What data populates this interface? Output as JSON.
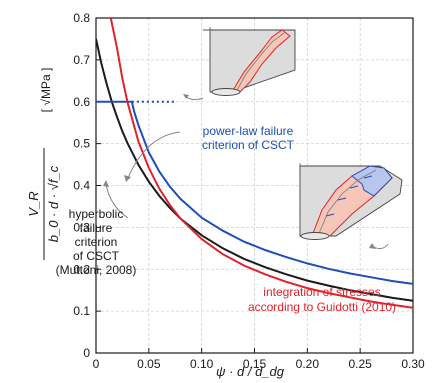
{
  "chart_data": {
    "type": "line",
    "title": "",
    "xlabel": "ψ · d / d_dg",
    "ylabel_num": "V_R",
    "ylabel_den": "b_0 · d · √f_c",
    "ylabel_unit": "[ √MPa ]",
    "xlim": [
      0,
      0.3
    ],
    "ylim": [
      0,
      0.8
    ],
    "x_ticks": [
      "0",
      "0.05",
      "0.10",
      "0.15",
      "0.20",
      "0.25",
      "0.30"
    ],
    "y_ticks": [
      "0",
      "0.1",
      "0.2",
      "0.3",
      "0.4",
      "0.5",
      "0.6",
      "0.7",
      "0.8"
    ],
    "grid": true,
    "series": [
      {
        "color": "#1a1a1a",
        "points": [
          [
            0,
            0.75
          ],
          [
            0.005,
            0.692
          ],
          [
            0.01,
            0.643
          ],
          [
            0.015,
            0.6
          ],
          [
            0.02,
            0.563
          ],
          [
            0.025,
            0.529
          ],
          [
            0.03,
            0.5
          ],
          [
            0.04,
            0.45
          ],
          [
            0.05,
            0.409
          ],
          [
            0.06,
            0.375
          ],
          [
            0.07,
            0.346
          ],
          [
            0.08,
            0.321
          ],
          [
            0.1,
            0.281
          ],
          [
            0.12,
            0.25
          ],
          [
            0.14,
            0.225
          ],
          [
            0.16,
            0.205
          ],
          [
            0.18,
            0.188
          ],
          [
            0.2,
            0.173
          ],
          [
            0.22,
            0.161
          ],
          [
            0.24,
            0.15
          ],
          [
            0.26,
            0.141
          ],
          [
            0.28,
            0.132
          ],
          [
            0.3,
            0.125
          ]
        ]
      },
      {
        "color": "#1f4fb5",
        "points": [
          [
            0,
            0.6
          ],
          [
            0.034,
            0.6
          ],
          [
            0.036,
            0.578
          ],
          [
            0.04,
            0.545
          ],
          [
            0.05,
            0.479
          ],
          [
            0.06,
            0.433
          ],
          [
            0.07,
            0.397
          ],
          [
            0.08,
            0.368
          ],
          [
            0.1,
            0.323
          ],
          [
            0.12,
            0.292
          ],
          [
            0.14,
            0.266
          ],
          [
            0.16,
            0.246
          ],
          [
            0.18,
            0.229
          ],
          [
            0.2,
            0.214
          ],
          [
            0.22,
            0.201
          ],
          [
            0.24,
            0.19
          ],
          [
            0.26,
            0.181
          ],
          [
            0.28,
            0.172
          ],
          [
            0.3,
            0.165
          ]
        ],
        "dotted_extension": [
          [
            0.034,
            0.6
          ],
          [
            0.075,
            0.6
          ]
        ]
      },
      {
        "color": "#e0232b",
        "points": [
          [
            0.014,
            0.8
          ],
          [
            0.02,
            0.727
          ],
          [
            0.025,
            0.655
          ],
          [
            0.03,
            0.597
          ],
          [
            0.04,
            0.506
          ],
          [
            0.05,
            0.442
          ],
          [
            0.06,
            0.392
          ],
          [
            0.07,
            0.353
          ],
          [
            0.08,
            0.321
          ],
          [
            0.1,
            0.272
          ],
          [
            0.12,
            0.236
          ],
          [
            0.14,
            0.209
          ],
          [
            0.16,
            0.188
          ],
          [
            0.18,
            0.17
          ],
          [
            0.2,
            0.155
          ],
          [
            0.22,
            0.143
          ],
          [
            0.24,
            0.133
          ],
          [
            0.26,
            0.123
          ],
          [
            0.28,
            0.115
          ],
          [
            0.3,
            0.108
          ]
        ]
      }
    ],
    "annotations": [
      {
        "key": "blue",
        "color": "#1f4fb5",
        "lines": [
          "power-law failure",
          "criterion of CSCT"
        ]
      },
      {
        "key": "black",
        "color": "#1a1a1a",
        "lines": [
          "hyperbolic",
          "failure",
          "criterion",
          "of CSCT",
          "(Muttoni, 2008)"
        ]
      },
      {
        "key": "red",
        "color": "#e0232b",
        "lines": [
          "integration of stresses",
          "according to Guidotti (2010)"
        ]
      }
    ]
  }
}
